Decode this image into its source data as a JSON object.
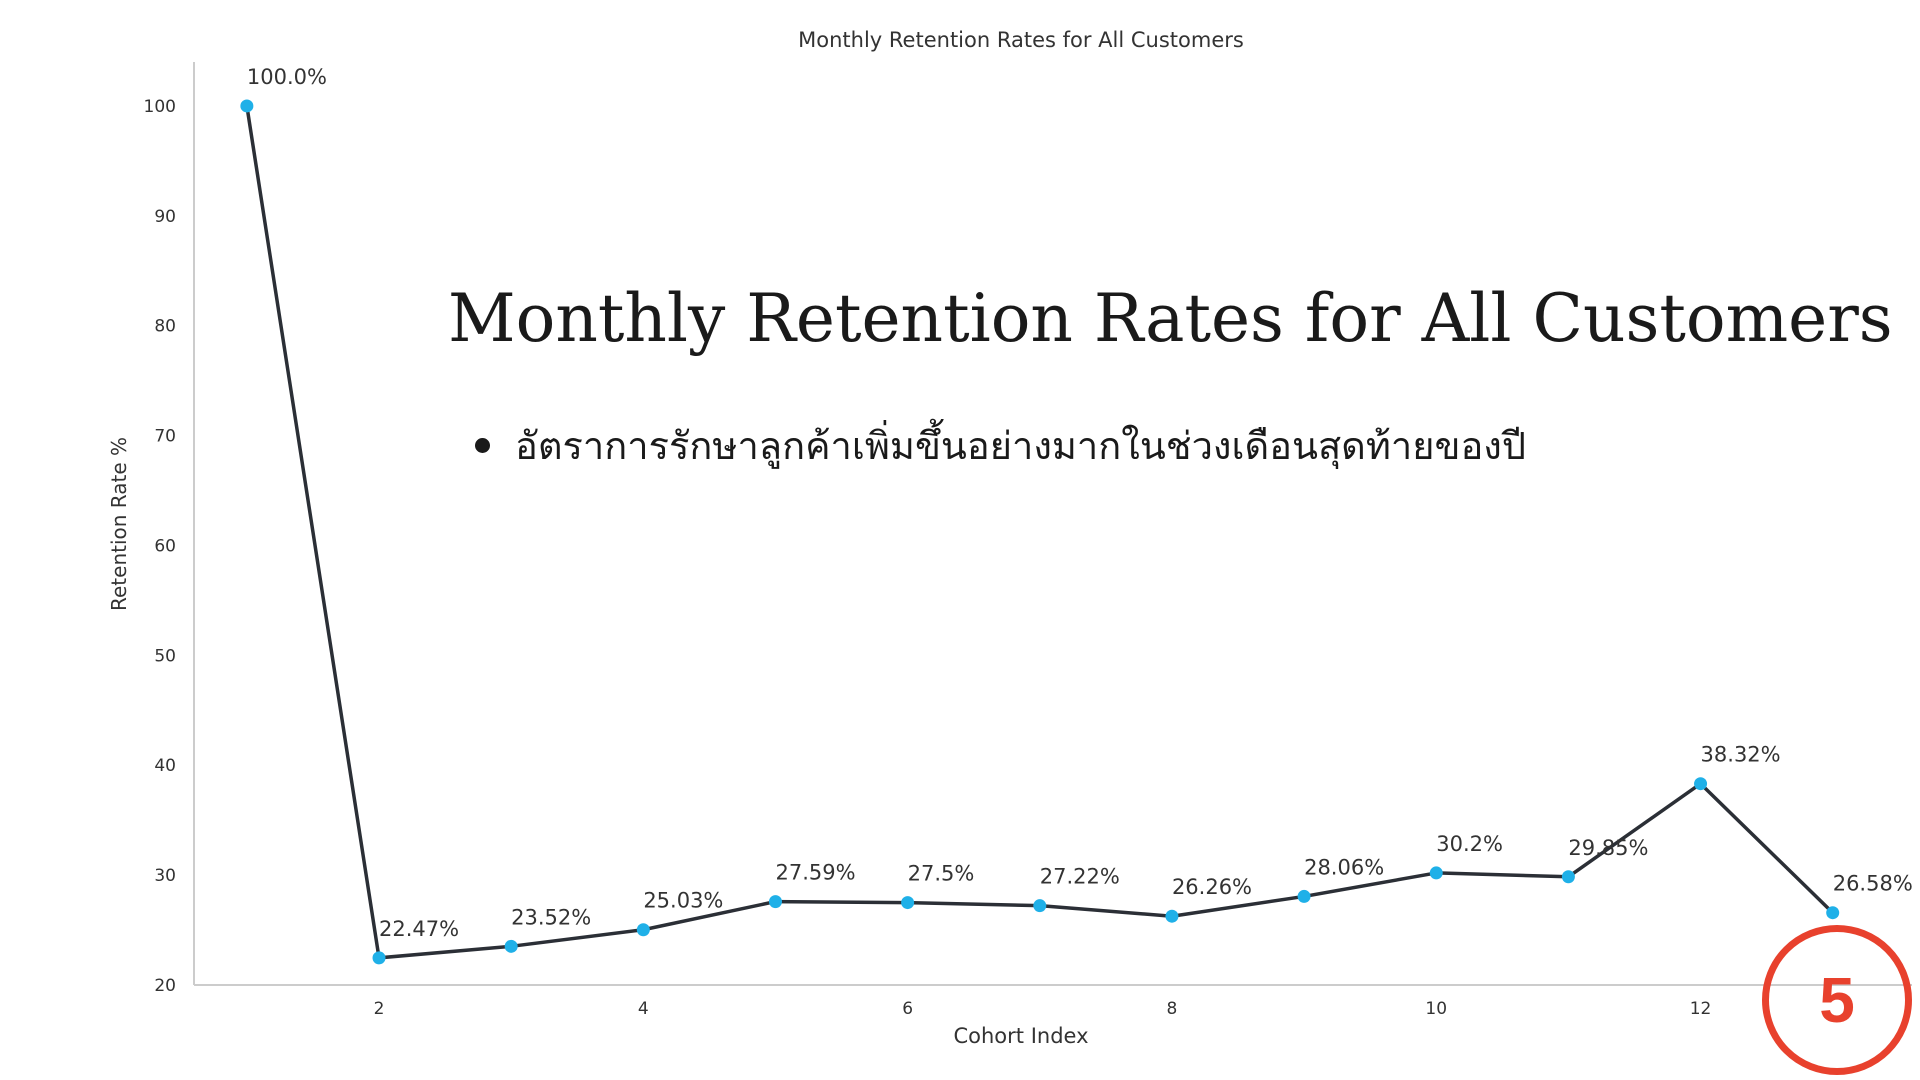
{
  "slide": {
    "title": "Monthly Retention Rates for All Customers",
    "bullet": "อัตราการรักษาลูกค้าเพิ่มขึ้นอย่างมากในช่วงเดือนสุดท้ายของปี",
    "page_number": "5"
  },
  "colors": {
    "line": "#2b2f36",
    "marker": "#1fb0e8",
    "axis": "#cccccc",
    "accent": "#e8412d"
  },
  "chart_data": {
    "type": "line",
    "title": "Monthly Retention Rates for All Customers",
    "xlabel": "Cohort Index",
    "ylabel": "Retention Rate %",
    "x": [
      1,
      2,
      3,
      4,
      5,
      6,
      7,
      8,
      9,
      10,
      11,
      12,
      13
    ],
    "values": [
      100.0,
      22.47,
      23.52,
      25.03,
      27.59,
      27.5,
      27.22,
      26.26,
      28.06,
      30.2,
      29.85,
      38.32,
      26.58
    ],
    "data_labels": [
      "100.0%",
      "22.47%",
      "23.52%",
      "25.03%",
      "27.59%",
      "27.5%",
      "27.22%",
      "26.26%",
      "28.06%",
      "30.2%",
      "29.85%",
      "38.32%",
      "26.58%"
    ],
    "xticks": [
      2,
      4,
      6,
      8,
      10,
      12
    ],
    "yticks": [
      20,
      30,
      40,
      50,
      60,
      70,
      80,
      90,
      100
    ],
    "xlim": [
      0.6,
      13.6
    ],
    "ylim": [
      20,
      104
    ],
    "grid": false,
    "legend": "none"
  }
}
